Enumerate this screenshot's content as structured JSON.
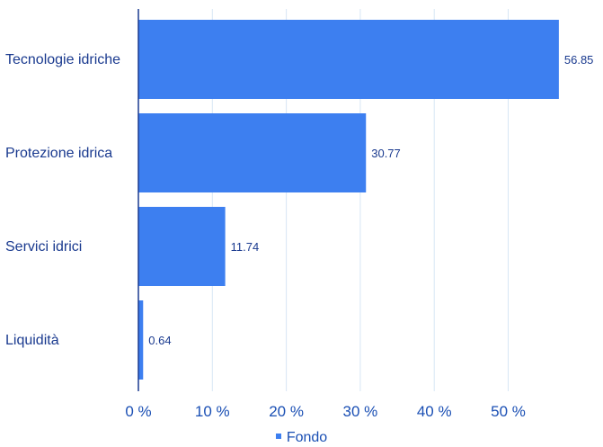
{
  "chart_data": {
    "type": "bar",
    "orientation": "horizontal",
    "categories": [
      "Tecnologie idriche",
      "Protezione idrica",
      "Servici idrici",
      "Liquidità"
    ],
    "series": [
      {
        "name": "Fondo",
        "values": [
          56.85,
          30.77,
          11.74,
          0.64
        ],
        "color": "#3d7ff0"
      }
    ],
    "data_labels": [
      "56.85",
      "30.77",
      "11.74",
      "0.64"
    ],
    "x_ticks": [
      0,
      10,
      20,
      30,
      40,
      50
    ],
    "x_tick_labels": [
      "0 %",
      "10 %",
      "20 %",
      "30 %",
      "40 %",
      "50 %"
    ],
    "xlim": [
      0,
      60
    ],
    "grid": true,
    "legend_position": "bottom"
  },
  "legend": {
    "label": "Fondo"
  },
  "colors": {
    "bar": "#3d7ff0",
    "grid": "#d7e6f5",
    "axis": "#1a3a8f",
    "text": "#1a3a8f",
    "tick_text": "#1a4fb4"
  }
}
